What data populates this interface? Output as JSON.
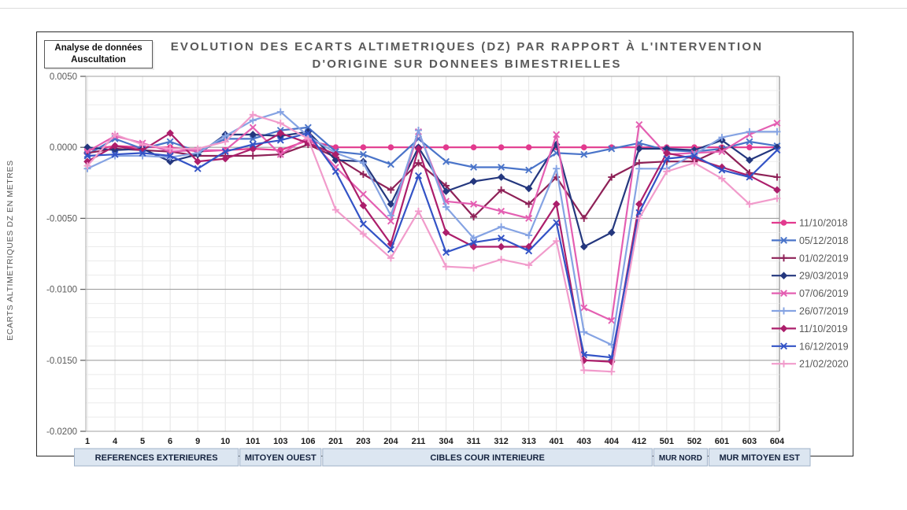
{
  "chart_data": {
    "type": "line",
    "title_line1": "EVOLUTION DES ECARTS ALTIMETRIQUES (DZ) PAR RAPPORT À L'INTERVENTION",
    "title_line2": "D'ORIGINE SUR DONNEES BIMESTRIELLES",
    "badge_line1": "Analyse de données",
    "badge_line2": "Auscultation",
    "ylabel": "ECARTS ALTIMETRIQUES DZ EN METRES",
    "ylim": [
      -0.02,
      0.005
    ],
    "ytick_step": 0.005,
    "yminor_step": 0.001,
    "grid": true,
    "legend_position": "right",
    "categories": [
      "1",
      "4",
      "5",
      "6",
      "9",
      "10",
      "101",
      "103",
      "106",
      "201",
      "203",
      "204",
      "211",
      "304",
      "311",
      "312",
      "313",
      "401",
      "403",
      "404",
      "412",
      "501",
      "502",
      "601",
      "603",
      "604"
    ],
    "category_groups": [
      {
        "label": "REFERENCES EXTERIEURES",
        "start": 0,
        "end": 5
      },
      {
        "label": "MITOYEN OUEST",
        "start": 6,
        "end": 8
      },
      {
        "label": "CIBLES COUR INTERIEURE",
        "start": 9,
        "end": 20
      },
      {
        "label": "MUR NORD",
        "start": 21,
        "end": 22
      },
      {
        "label": "MUR MITOYEN EST",
        "start": 23,
        "end": 25
      }
    ],
    "series": [
      {
        "name": "11/10/2018",
        "color": "#E23A8E",
        "marker": "circle",
        "values": [
          -0.0002,
          0.0001,
          0.0,
          0.0,
          -0.0003,
          -0.0002,
          -0.0001,
          -0.0002,
          0.0005,
          0.0,
          0.0,
          0.0,
          0.0,
          0.0,
          0.0,
          0.0,
          0.0,
          0.0,
          0.0,
          0.0,
          0.0,
          0.0,
          0.0,
          0.0,
          0.0,
          0.0
        ]
      },
      {
        "name": "05/12/2018",
        "color": "#4A74C9",
        "marker": "x",
        "values": [
          -0.0005,
          0.0006,
          -0.0001,
          0.0004,
          -0.0003,
          0.0006,
          0.0006,
          0.0012,
          0.0014,
          -0.0003,
          -0.0005,
          -0.0012,
          0.0006,
          -0.001,
          -0.0014,
          -0.0014,
          -0.0016,
          -0.0004,
          -0.0005,
          -0.0001,
          0.0003,
          -0.0002,
          -0.0003,
          -0.0001,
          0.0004,
          0.0001
        ]
      },
      {
        "name": "01/02/2019",
        "color": "#8E2157",
        "marker": "plus",
        "values": [
          -0.0004,
          -0.0001,
          -0.0002,
          -0.0003,
          -0.0006,
          -0.0006,
          -0.0006,
          -0.0005,
          0.0002,
          -0.0007,
          -0.0019,
          -0.003,
          -0.0011,
          -0.0027,
          -0.0049,
          -0.003,
          -0.004,
          -0.0021,
          -0.005,
          -0.0021,
          -0.0011,
          -0.001,
          -0.001,
          -0.0001,
          -0.0018,
          -0.0021
        ]
      },
      {
        "name": "29/03/2019",
        "color": "#24377E",
        "marker": "diamond",
        "values": [
          0.0,
          -0.0002,
          -0.0001,
          -0.001,
          -0.0005,
          0.0009,
          0.0009,
          0.0008,
          0.0011,
          -0.0009,
          -0.001,
          -0.004,
          0.0,
          -0.0031,
          -0.0024,
          -0.0021,
          -0.0029,
          0.0002,
          -0.007,
          -0.006,
          -0.0001,
          -0.0001,
          -0.0002,
          0.0005,
          -0.0009,
          0.0
        ]
      },
      {
        "name": "07/06/2019",
        "color": "#E45FB2",
        "marker": "x",
        "values": [
          -0.0003,
          0.0008,
          0.0003,
          -0.0003,
          -0.0002,
          -0.0002,
          0.0014,
          -0.0005,
          0.0007,
          -0.0014,
          -0.0033,
          -0.0052,
          0.0011,
          -0.0038,
          -0.004,
          -0.0045,
          -0.005,
          0.0009,
          -0.0113,
          -0.0122,
          0.0016,
          -0.0005,
          -0.0004,
          -0.0003,
          0.0009,
          0.0017
        ]
      },
      {
        "name": "26/07/2019",
        "color": "#85A3E3",
        "marker": "plus",
        "values": [
          -0.0015,
          -0.0006,
          -0.0006,
          -0.0007,
          -0.0004,
          0.0008,
          0.0019,
          0.0025,
          0.0008,
          -0.0004,
          -0.0011,
          -0.0048,
          0.0012,
          -0.0042,
          -0.0064,
          -0.0056,
          -0.0062,
          -0.0015,
          -0.013,
          -0.0139,
          -0.0015,
          -0.0015,
          -0.0005,
          0.0007,
          0.0011,
          0.0011
        ]
      },
      {
        "name": "11/10/2019",
        "color": "#AC1E6B",
        "marker": "diamond",
        "values": [
          -0.001,
          0.0001,
          -0.0002,
          0.001,
          -0.001,
          -0.0008,
          -0.0001,
          0.001,
          0.0003,
          -0.0005,
          -0.0041,
          -0.0068,
          -0.0001,
          -0.006,
          -0.007,
          -0.007,
          -0.007,
          -0.004,
          -0.015,
          -0.0151,
          -0.004,
          -0.0004,
          -0.0008,
          -0.0014,
          -0.002,
          -0.003
        ]
      },
      {
        "name": "16/12/2019",
        "color": "#3353C6",
        "marker": "x",
        "values": [
          -0.0006,
          -0.0005,
          -0.0004,
          -0.0006,
          -0.0015,
          -0.0003,
          0.0002,
          0.0005,
          0.001,
          -0.0017,
          -0.0054,
          -0.0072,
          -0.002,
          -0.0074,
          -0.0067,
          -0.0064,
          -0.0073,
          -0.0053,
          -0.0146,
          -0.0148,
          -0.0046,
          -0.0008,
          -0.0006,
          -0.0016,
          -0.0021,
          -0.0002
        ]
      },
      {
        "name": "21/02/2020",
        "color": "#F19BCB",
        "marker": "plus",
        "values": [
          -0.0013,
          0.0009,
          0.0002,
          -0.0001,
          -0.0001,
          0.0004,
          0.0023,
          0.0017,
          0.0006,
          -0.0044,
          -0.0061,
          -0.0078,
          -0.0045,
          -0.0084,
          -0.0085,
          -0.0079,
          -0.0083,
          -0.0066,
          -0.0157,
          -0.0158,
          -0.005,
          -0.0017,
          -0.0011,
          -0.0022,
          -0.004,
          -0.0036
        ]
      }
    ],
    "band_fill": "#dce6f1",
    "band_border": "#9fb1c8",
    "band_text_color": "#15233f",
    "axis_text_color": "#595959",
    "xlabel_color": "#1a1a1a",
    "major_grid_color": "#a0a0a0",
    "minor_grid_color": "#ebebeb",
    "title_color": "#595959"
  }
}
